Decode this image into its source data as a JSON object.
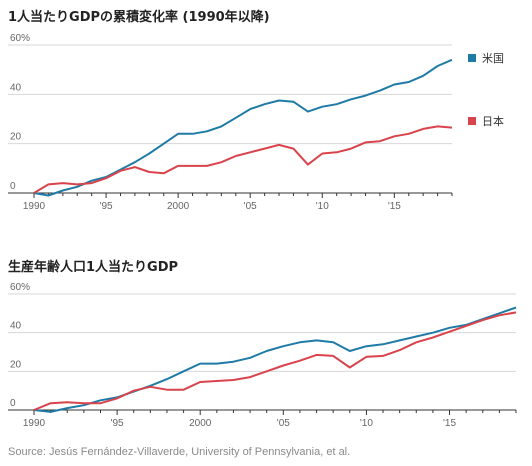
{
  "colors": {
    "us": "#1f7ba6",
    "japan": "#d9434b",
    "grid": "#d7d7d7",
    "axis": "#333333",
    "tick": "#666666"
  },
  "source": "Source: Jesús Fernández-Villaverde, University of Pennsylvania, et al.",
  "chart_data": [
    {
      "type": "line",
      "title": "1人当たりGDPの累積変化率 (1990年以降)",
      "y_unit": "%",
      "ylim": [
        0,
        60
      ],
      "y_ticks": [
        "60",
        "40",
        "20",
        "0"
      ],
      "x_tick_labels": [
        "1990",
        "'95",
        "2000",
        "'05",
        "'10",
        "'15"
      ],
      "xlim": [
        1990,
        2019
      ],
      "grid": true,
      "legend": "right",
      "x": [
        1990,
        1991,
        1992,
        1993,
        1994,
        1995,
        1996,
        1997,
        1998,
        1999,
        2000,
        2001,
        2002,
        2003,
        2004,
        2005,
        2006,
        2007,
        2008,
        2009,
        2010,
        2011,
        2012,
        2013,
        2014,
        2015,
        2016,
        2017,
        2018,
        2019
      ],
      "series": [
        {
          "name": "米国",
          "color_key": "us",
          "values": [
            0,
            -1,
            1,
            2.5,
            5,
            6.5,
            9.5,
            12.5,
            16,
            20,
            24,
            24,
            25,
            27,
            30.5,
            34,
            36,
            37.5,
            37,
            33,
            35,
            36,
            38,
            39.5,
            41.5,
            44,
            45,
            47.5,
            51.5,
            54
          ]
        },
        {
          "name": "日本",
          "color_key": "japan",
          "values": [
            0,
            3.5,
            4,
            3.5,
            4,
            6,
            9,
            10.5,
            8.5,
            8,
            11,
            11,
            11,
            12.5,
            15,
            16.5,
            18,
            19.5,
            18,
            11.5,
            16,
            16.5,
            18,
            20.5,
            21,
            23,
            24,
            26,
            27,
            26.5
          ]
        }
      ]
    },
    {
      "type": "line",
      "title": "生産年齢人口1人当たりGDP",
      "y_unit": "%",
      "ylim": [
        0,
        60
      ],
      "y_ticks": [
        "60",
        "40",
        "20",
        "0"
      ],
      "x_tick_labels": [
        "1990",
        "'95",
        "2000",
        "'05",
        "'10",
        "'15"
      ],
      "xlim": [
        1990,
        2019
      ],
      "grid": true,
      "x": [
        1990,
        1991,
        1992,
        1993,
        1994,
        1995,
        1996,
        1997,
        1998,
        1999,
        2000,
        2001,
        2002,
        2003,
        2004,
        2005,
        2006,
        2007,
        2008,
        2009,
        2010,
        2011,
        2012,
        2013,
        2014,
        2015,
        2016,
        2017,
        2018,
        2019
      ],
      "series": [
        {
          "color_key": "us",
          "values": [
            0,
            -1,
            1,
            2.5,
            5,
            6.5,
            9.5,
            12.5,
            16,
            20,
            24,
            24,
            25,
            27,
            30.5,
            33,
            35,
            36,
            35,
            30.5,
            33,
            34,
            36,
            38,
            40,
            42.5,
            44,
            47,
            50,
            53
          ]
        },
        {
          "color_key": "japan",
          "values": [
            0,
            3.5,
            4,
            3.5,
            3.5,
            6,
            10,
            12,
            10.5,
            10.5,
            14.5,
            15,
            15.5,
            17,
            20,
            23,
            25.5,
            28.5,
            28,
            22,
            27.5,
            28,
            31,
            35,
            37.5,
            40.5,
            43.5,
            46.5,
            49,
            50.5
          ]
        }
      ]
    }
  ]
}
